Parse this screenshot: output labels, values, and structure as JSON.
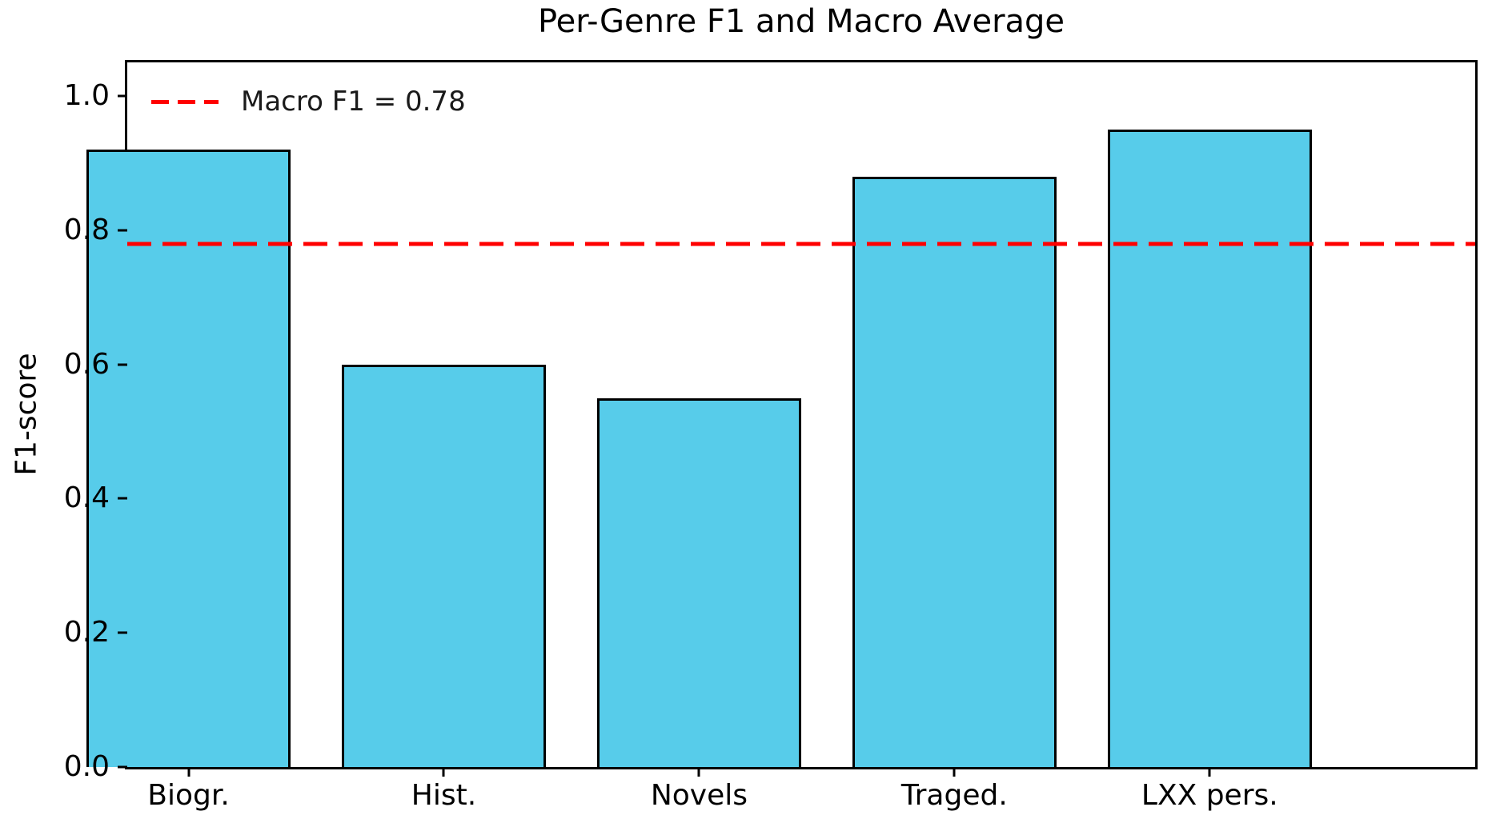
{
  "chart_data": {
    "type": "bar",
    "title": "Per-Genre F1 and Macro Average",
    "xlabel": "",
    "ylabel": "F1-score",
    "categories": [
      "Biogr.",
      "Hist.",
      "Novels",
      "Traged.",
      "LXX pers."
    ],
    "values": [
      0.92,
      0.6,
      0.55,
      0.88,
      0.95
    ],
    "yticks": [
      "0.0",
      "0.2",
      "0.4",
      "0.6",
      "0.8",
      "1.0"
    ],
    "ytick_values": [
      0.0,
      0.2,
      0.4,
      0.6,
      0.8,
      1.0
    ],
    "ylim": [
      0,
      1.05
    ],
    "grid": false,
    "legend_position": "upper-left",
    "reference_line": {
      "value": 0.78,
      "label": "Macro F1 = 0.78",
      "color": "#ff0000",
      "style": "dashed"
    },
    "colors": {
      "bar_fill": "#57ccea",
      "bar_edge": "#000000",
      "axis": "#000000",
      "text": "#000000",
      "background": "#ffffff"
    },
    "bar_width_fraction": 0.8
  }
}
